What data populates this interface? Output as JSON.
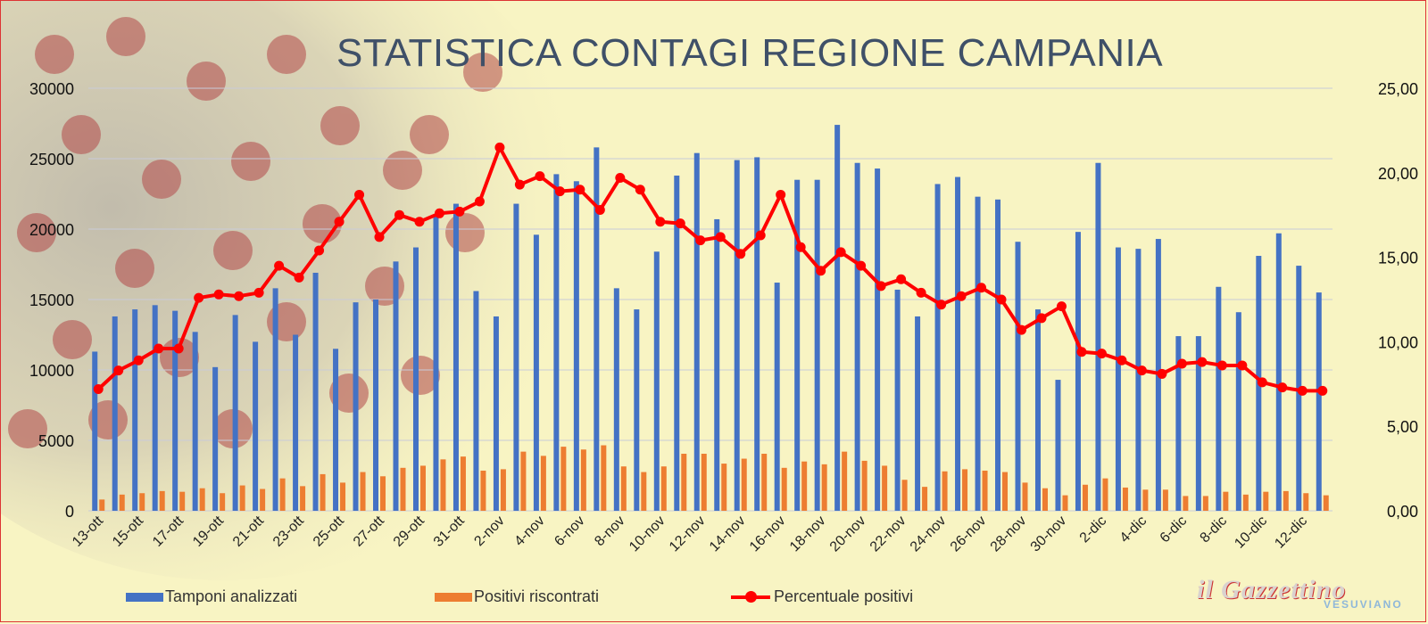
{
  "chart_data": {
    "type": "bar",
    "title": "Statistica Contagi Regione Campania",
    "categories": [
      "13-ott",
      "14-ott",
      "15-ott",
      "16-ott",
      "17-ott",
      "18-ott",
      "19-ott",
      "20-ott",
      "21-ott",
      "22-ott",
      "23-ott",
      "24-ott",
      "25-ott",
      "26-ott",
      "27-ott",
      "28-ott",
      "29-ott",
      "30-ott",
      "31-ott",
      "1-nov",
      "2-nov",
      "3-nov",
      "4-nov",
      "5-nov",
      "6-nov",
      "7-nov",
      "8-nov",
      "9-nov",
      "10-nov",
      "11-nov",
      "12-nov",
      "13-nov",
      "14-nov",
      "15-nov",
      "16-nov",
      "17-nov",
      "18-nov",
      "19-nov",
      "20-nov",
      "21-nov",
      "22-nov",
      "23-nov",
      "24-nov",
      "25-nov",
      "26-nov",
      "27-nov",
      "28-nov",
      "29-nov",
      "30-nov",
      "1-dic",
      "2-dic",
      "3-dic",
      "4-dic",
      "5-dic",
      "6-dic",
      "7-dic",
      "8-dic",
      "9-dic",
      "10-dic",
      "11-dic",
      "12-dic",
      "13-dic"
    ],
    "x_tick_labels": [
      "13-ott",
      "15-ott",
      "17-ott",
      "19-ott",
      "21-ott",
      "23-ott",
      "25-ott",
      "27-ott",
      "29-ott",
      "31-ott",
      "2-nov",
      "4-nov",
      "6-nov",
      "8-nov",
      "10-nov",
      "12-nov",
      "14-nov",
      "16-nov",
      "18-nov",
      "20-nov",
      "22-nov",
      "24-nov",
      "26-nov",
      "28-nov",
      "30-nov",
      "2-dic",
      "4-dic",
      "6-dic",
      "8-dic",
      "10-dic",
      "12-dic"
    ],
    "series": [
      {
        "name": "Tamponi analizzati",
        "type": "bar",
        "axis": "left",
        "color": "#4472c4",
        "values": [
          11300,
          13800,
          14300,
          14600,
          14200,
          12700,
          10200,
          13900,
          12000,
          15800,
          12500,
          16900,
          11500,
          14800,
          15000,
          17700,
          18700,
          21000,
          21800,
          15600,
          13800,
          21800,
          19600,
          23900,
          23400,
          25800,
          15800,
          14300,
          18400,
          23800,
          25400,
          20700,
          24900,
          25100,
          16200,
          23500,
          23500,
          27400,
          24700,
          24300,
          15700,
          13800,
          23200,
          23700,
          22300,
          22100,
          19100,
          14300,
          9300,
          19800,
          24700,
          18700,
          18600,
          19300,
          12400,
          12400,
          15900,
          14100,
          18100,
          19700,
          17400,
          15500
        ]
      },
      {
        "name": "Positivi riscontrati",
        "type": "bar",
        "axis": "left",
        "color": "#ed7d31",
        "values": [
          800,
          1150,
          1250,
          1400,
          1350,
          1600,
          1250,
          1800,
          1550,
          2300,
          1750,
          2600,
          2000,
          2750,
          2450,
          3050,
          3200,
          3650,
          3850,
          2850,
          2950,
          4200,
          3900,
          4550,
          4350,
          4650,
          3150,
          2750,
          3150,
          4050,
          4050,
          3350,
          3700,
          4050,
          3050,
          3500,
          3300,
          4200,
          3550,
          3200,
          2200,
          1700,
          2800,
          2950,
          2850,
          2750,
          2000,
          1600,
          1100,
          1850,
          2300,
          1650,
          1500,
          1500,
          1050,
          1050,
          1350,
          1150,
          1350,
          1400,
          1250,
          1100
        ]
      },
      {
        "name": "Percentuale positivi",
        "type": "line",
        "axis": "right",
        "color": "#ff0000",
        "values": [
          7.2,
          8.3,
          8.9,
          9.6,
          9.6,
          12.6,
          12.8,
          12.7,
          12.9,
          14.5,
          13.8,
          15.4,
          17.1,
          18.7,
          16.2,
          17.5,
          17.1,
          17.6,
          17.7,
          18.3,
          21.5,
          19.3,
          19.8,
          18.9,
          19.0,
          17.8,
          19.7,
          19.0,
          17.1,
          17.0,
          16.0,
          16.2,
          15.2,
          16.3,
          18.7,
          15.6,
          14.2,
          15.3,
          14.5,
          13.3,
          13.7,
          12.9,
          12.2,
          12.7,
          13.2,
          12.5,
          10.7,
          11.4,
          12.1,
          9.4,
          9.3,
          8.9,
          8.3,
          8.1,
          8.7,
          8.8,
          8.6,
          8.6,
          7.6,
          7.3,
          7.1,
          7.1
        ]
      }
    ],
    "y_left": {
      "min": 0,
      "max": 30000,
      "ticks": [
        "0",
        "5000",
        "10000",
        "15000",
        "20000",
        "25000",
        "30000"
      ]
    },
    "y_right": {
      "min": 0,
      "max": 25,
      "ticks": [
        "0,00",
        "5,00",
        "10,00",
        "15,00",
        "20,00",
        "25,00"
      ]
    },
    "grid": true,
    "legend_position": "bottom"
  },
  "legend": [
    {
      "label": "Tamponi analizzati",
      "color": "#4472c4"
    },
    {
      "label": "Positivi riscontrati",
      "color": "#ed7d31"
    },
    {
      "label": "Percentuale positivi",
      "color": "#ff0000"
    }
  ],
  "title_display": "STATISTICA CONTAGI REGIONE CAMPANIA",
  "logo": {
    "main": "il Gazzettino",
    "sub": "VESUVIANO"
  }
}
